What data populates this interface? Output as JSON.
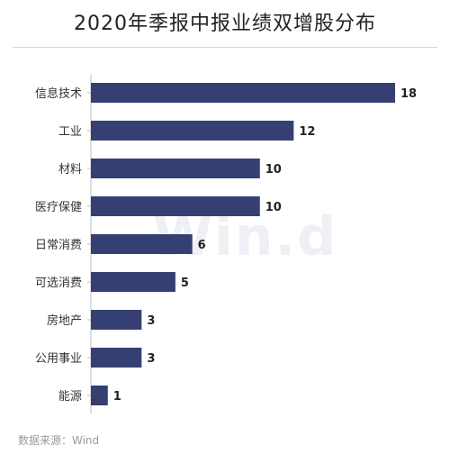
{
  "title": "2020年季报中报业绩双增股分布",
  "source": "数据来源：Wind",
  "watermark": "Win.d",
  "chart_data": {
    "type": "bar",
    "orientation": "horizontal",
    "categories": [
      "信息技术",
      "工业",
      "材料",
      "医疗保健",
      "日常消费",
      "可选消费",
      "房地产",
      "公用事业",
      "能源"
    ],
    "values": [
      18,
      12,
      10,
      10,
      6,
      5,
      3,
      3,
      1
    ],
    "bar_color": "#353f72",
    "grid": false,
    "legend": "none",
    "xlim": [
      0,
      18
    ]
  }
}
